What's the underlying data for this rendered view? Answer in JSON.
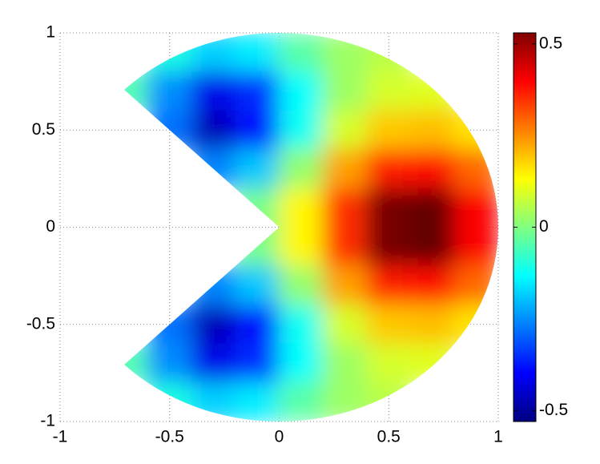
{
  "chart_data": {
    "type": "heatmap",
    "colormap": "jet",
    "grid": true,
    "x": [
      -0.9,
      -0.7,
      -0.5,
      -0.3,
      -0.1,
      0.1,
      0.3,
      0.5,
      0.7,
      0.9
    ],
    "y": [
      0.9,
      0.7,
      0.5,
      0.3,
      0.1,
      -0.1,
      -0.3,
      -0.5,
      -0.7,
      -0.9
    ],
    "z": [
      [
        null,
        null,
        -0.1,
        -0.18,
        -0.15,
        -0.04,
        0.03,
        0.06,
        null,
        null
      ],
      [
        null,
        -0.05,
        -0.25,
        -0.42,
        -0.35,
        -0.13,
        0.03,
        0.09,
        0.1,
        null
      ],
      [
        null,
        null,
        -0.28,
        -0.47,
        -0.38,
        -0.12,
        0.09,
        0.19,
        0.2,
        0.16
      ],
      [
        null,
        null,
        null,
        -0.26,
        -0.19,
        0.02,
        0.23,
        0.37,
        0.39,
        0.29
      ],
      [
        null,
        null,
        null,
        null,
        -0.01,
        0.14,
        0.35,
        0.54,
        0.56,
        0.4
      ],
      [
        null,
        null,
        null,
        null,
        -0.01,
        0.14,
        0.35,
        0.54,
        0.56,
        0.4
      ],
      [
        null,
        null,
        null,
        -0.26,
        -0.19,
        0.02,
        0.23,
        0.37,
        0.39,
        0.29
      ],
      [
        null,
        null,
        -0.28,
        -0.47,
        -0.38,
        -0.12,
        0.09,
        0.19,
        0.2,
        0.16
      ],
      [
        null,
        -0.05,
        -0.25,
        -0.42,
        -0.35,
        -0.13,
        0.03,
        0.09,
        0.1,
        null
      ],
      [
        null,
        null,
        -0.1,
        -0.18,
        -0.15,
        -0.04,
        0.03,
        0.06,
        null,
        null
      ]
    ],
    "xlim": [
      -1,
      1
    ],
    "ylim": [
      -1,
      1
    ],
    "xticks": [
      -1,
      -0.5,
      0,
      0.5,
      1
    ],
    "yticks": [
      -1,
      -0.5,
      0,
      0.5,
      1
    ],
    "clim": [
      -0.53,
      0.53
    ],
    "cticks": [
      -0.5,
      0,
      0.5
    ]
  }
}
